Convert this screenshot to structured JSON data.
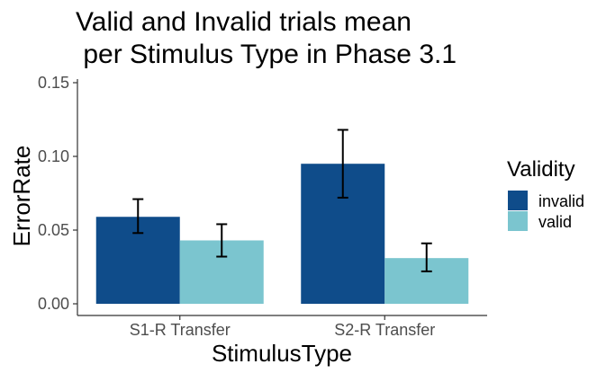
{
  "chart_data": {
    "type": "bar",
    "title_lines": [
      "Valid and Invalid trials mean",
      " per Stimulus Type in Phase 3.1"
    ],
    "xlabel": "StimulusType",
    "ylabel": "ErrorRate",
    "categories": [
      "S1-R Transfer",
      "S2-R Transfer"
    ],
    "series": [
      {
        "name": "invalid",
        "color": "#0f4c8a",
        "values": [
          0.059,
          0.095
        ],
        "error_low": [
          0.048,
          0.072
        ],
        "error_high": [
          0.071,
          0.118
        ]
      },
      {
        "name": "valid",
        "color": "#7bc5cf",
        "values": [
          0.043,
          0.031
        ],
        "error_low": [
          0.032,
          0.022
        ],
        "error_high": [
          0.054,
          0.041
        ]
      }
    ],
    "ylim": [
      0,
      0.155
    ],
    "yticks": [
      0.0,
      0.05,
      0.1,
      0.15
    ],
    "ytick_labels": [
      "0.00",
      "0.05",
      "0.10",
      "0.15"
    ],
    "grid": false,
    "legend": {
      "title": "Validity",
      "position": "right"
    }
  }
}
